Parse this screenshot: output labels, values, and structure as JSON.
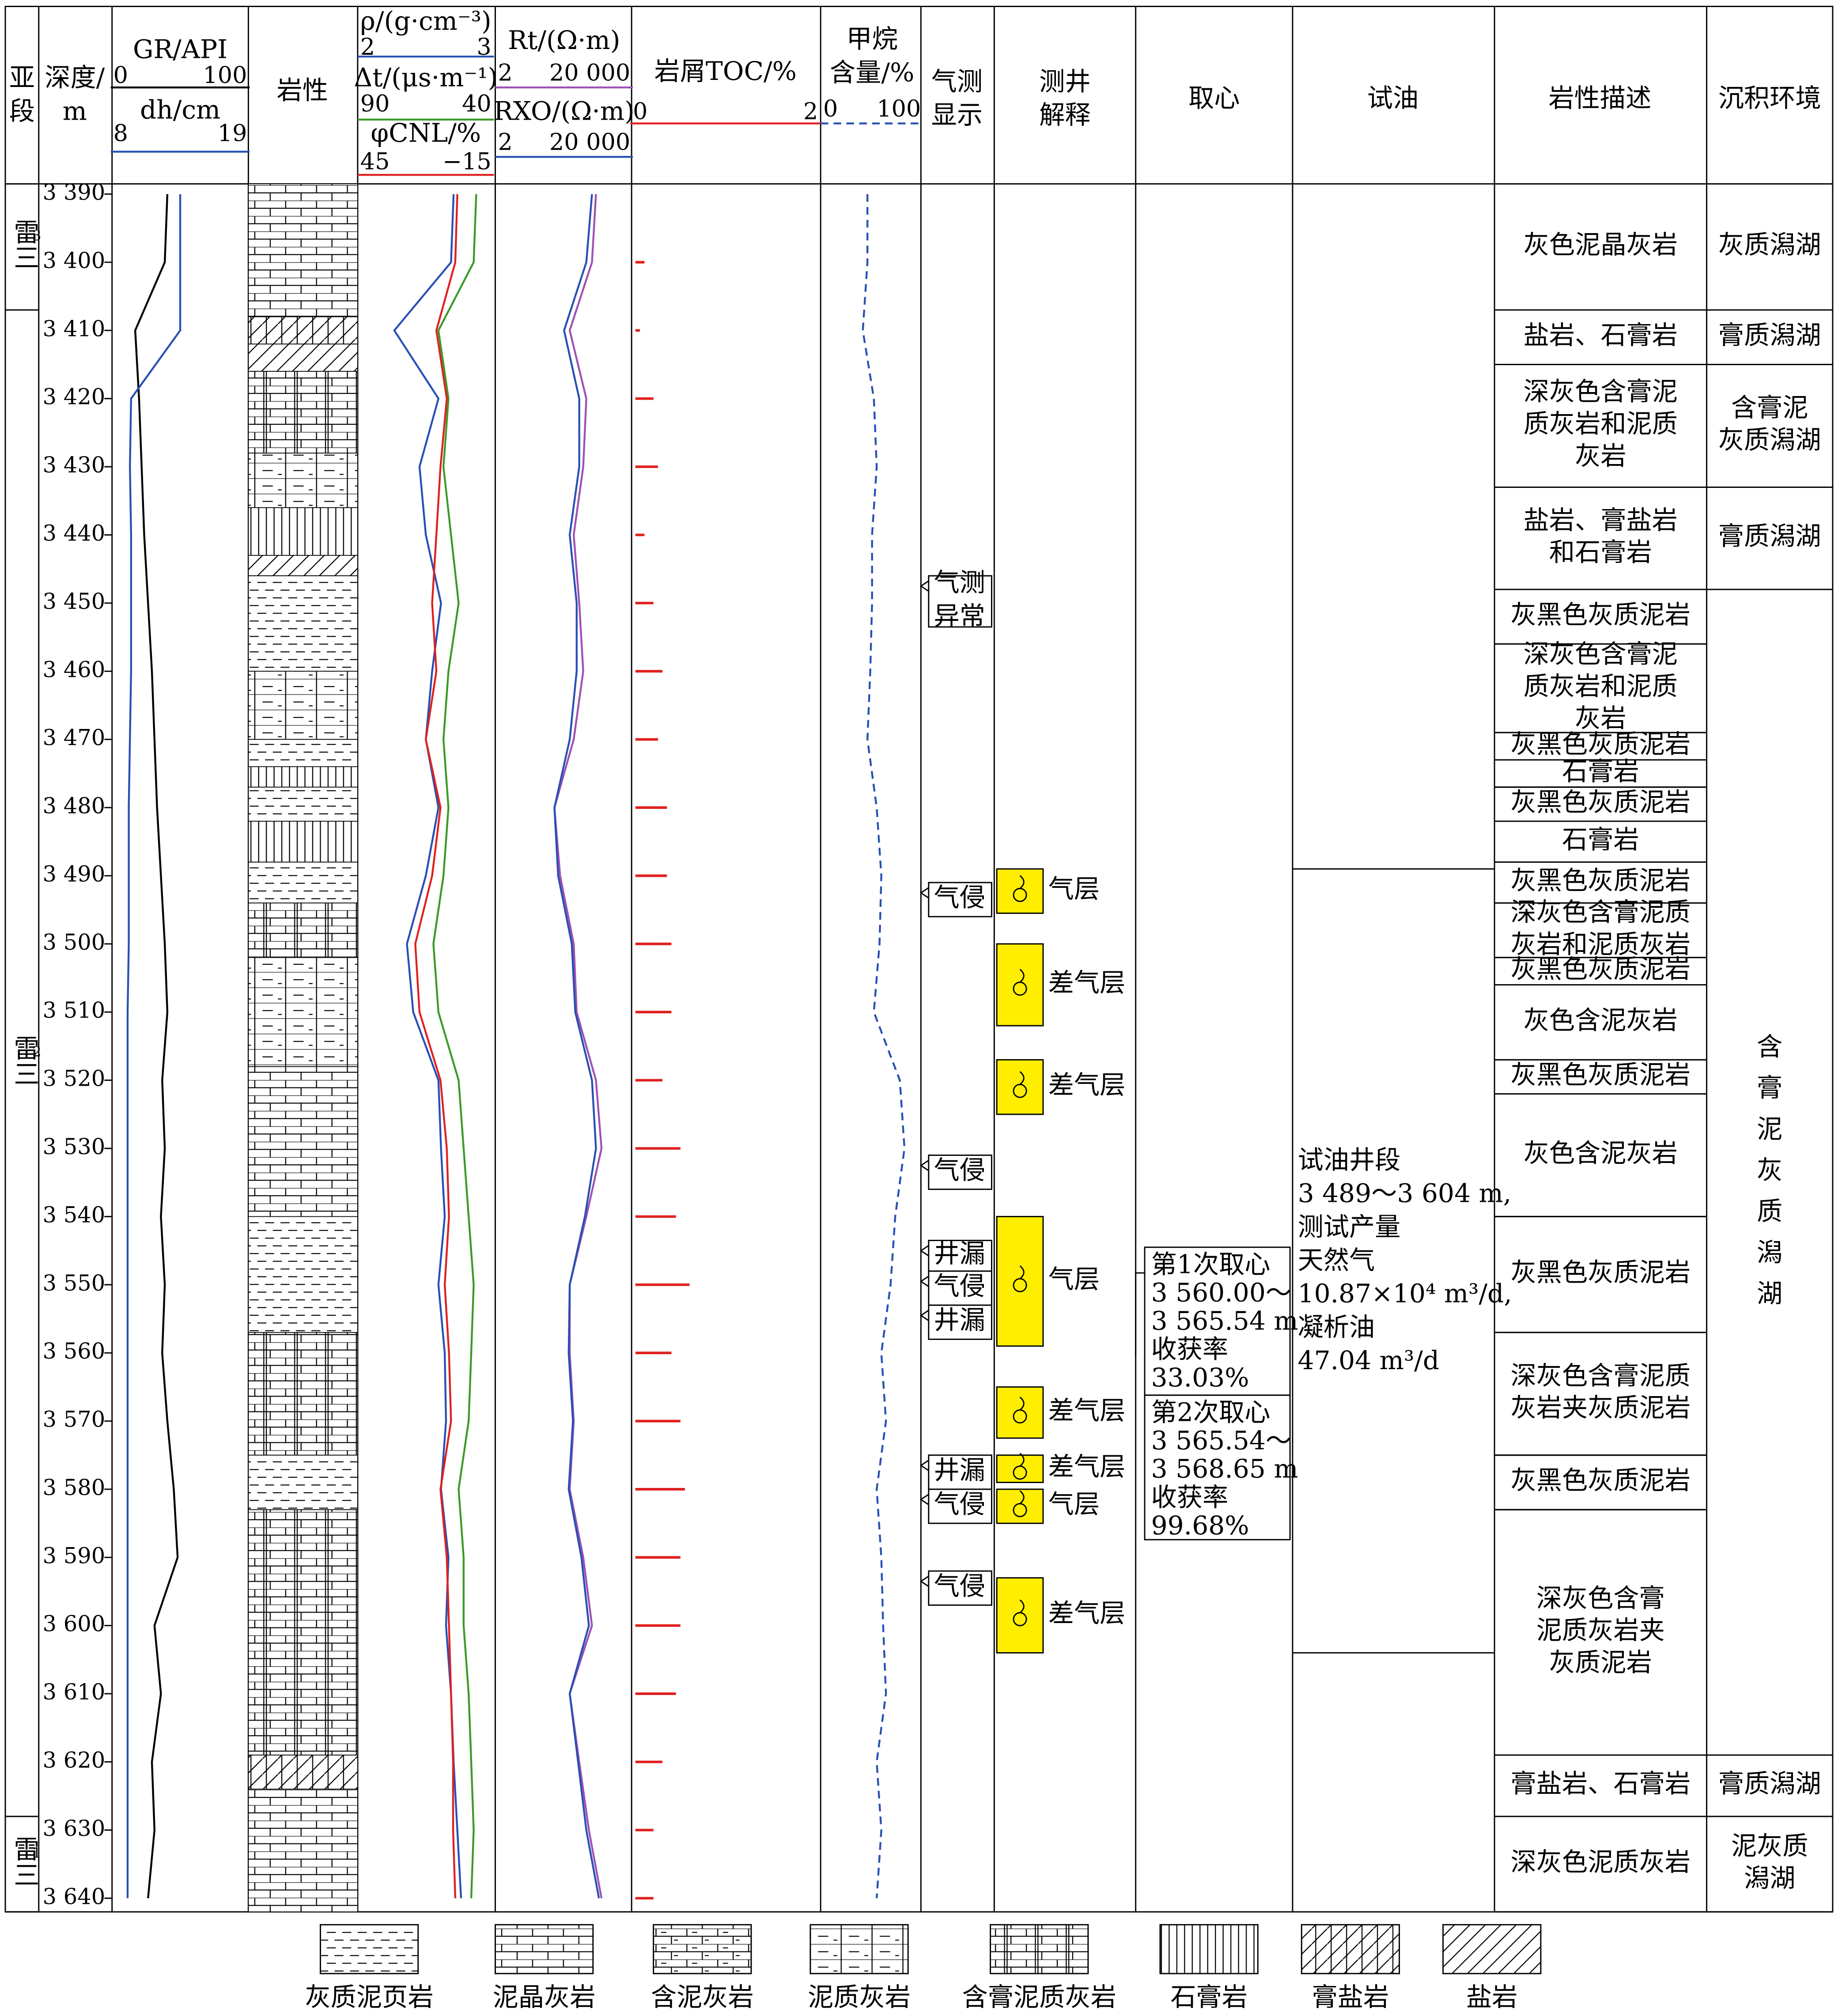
{
  "titles": {
    "substage": [
      "亚",
      "段"
    ],
    "depth": [
      "深度/",
      "m"
    ],
    "lithology": "岩性",
    "gas_show": [
      "气测",
      "显示"
    ],
    "interpretation": [
      "测井",
      "解释"
    ],
    "core": "取心",
    "test": "试油",
    "description": "岩性描述",
    "environment": "沉积环境"
  },
  "depth": {
    "ylim": [
      3388.5,
      3642
    ],
    "ticks": [
      {
        "value": 3390,
        "label": "3 390"
      },
      {
        "value": 3400,
        "label": "3 400"
      },
      {
        "value": 3410,
        "label": "3 410"
      },
      {
        "value": 3420,
        "label": "3 420"
      },
      {
        "value": 3430,
        "label": "3 430"
      },
      {
        "value": 3440,
        "label": "3 440"
      },
      {
        "value": 3450,
        "label": "3 450"
      },
      {
        "value": 3460,
        "label": "3 460"
      },
      {
        "value": 3470,
        "label": "3 470"
      },
      {
        "value": 3480,
        "label": "3 480"
      },
      {
        "value": 3490,
        "label": "3 490"
      },
      {
        "value": 3500,
        "label": "3 500"
      },
      {
        "value": 3510,
        "label": "3 510"
      },
      {
        "value": 3520,
        "label": "3 520"
      },
      {
        "value": 3530,
        "label": "3 530"
      },
      {
        "value": 3540,
        "label": "3 540"
      },
      {
        "value": 3550,
        "label": "3 550"
      },
      {
        "value": 3560,
        "label": "3 560"
      },
      {
        "value": 3570,
        "label": "3 570"
      },
      {
        "value": 3580,
        "label": "3 580"
      },
      {
        "value": 3590,
        "label": "3 590"
      },
      {
        "value": 3600,
        "label": "3 600"
      },
      {
        "value": 3610,
        "label": "3 610"
      },
      {
        "value": 3620,
        "label": "3 620"
      },
      {
        "value": 3630,
        "label": "3 630"
      },
      {
        "value": 3640,
        "label": "3 640"
      }
    ]
  },
  "substages": [
    {
      "name": "雷三",
      "sup": "3",
      "top": 3388.5,
      "base": 3407
    },
    {
      "name": "雷三",
      "sup": "2",
      "top": 3407,
      "base": 3628
    },
    {
      "name": "雷三",
      "sup": "1",
      "top": 3628,
      "base": 3642
    }
  ],
  "depths": [
    3390,
    3400,
    3410,
    3420,
    3430,
    3440,
    3450,
    3460,
    3470,
    3480,
    3490,
    3500,
    3510,
    3520,
    3530,
    3540,
    3550,
    3560,
    3570,
    3580,
    3590,
    3600,
    3610,
    3620,
    3630,
    3640
  ],
  "curves": [
    {
      "name": "GR/API",
      "type": "line",
      "color": "#000000",
      "xlim": [
        0,
        100
      ],
      "xticks": [
        0,
        100
      ],
      "values": [
        40,
        38,
        15,
        18,
        20,
        22,
        25,
        28,
        30,
        32,
        35,
        38,
        40,
        36,
        38,
        35,
        38,
        36,
        40,
        45,
        48,
        30,
        35,
        28,
        30,
        25
      ]
    },
    {
      "name": "dh/cm",
      "type": "line",
      "color": "#2850b4",
      "xlim": [
        8,
        19
      ],
      "xticks": [
        8,
        19
      ],
      "values": [
        13.5,
        13.5,
        13.5,
        9.3,
        9.2,
        9.3,
        9.3,
        9.3,
        9.2,
        9.1,
        9.1,
        9.1,
        9.0,
        9.0,
        9.0,
        9.0,
        9.0,
        9.0,
        9.0,
        9.0,
        9.0,
        9.0,
        9.0,
        9.0,
        9.0,
        9.0
      ]
    },
    {
      "name": "ρ/(g·cm⁻³)",
      "type": "line",
      "color": "#2850b4",
      "xlim": [
        2,
        3
      ],
      "xticks": [
        2,
        3
      ],
      "values": [
        2.72,
        2.7,
        2.25,
        2.6,
        2.45,
        2.5,
        2.62,
        2.55,
        2.5,
        2.6,
        2.5,
        2.35,
        2.4,
        2.6,
        2.62,
        2.65,
        2.6,
        2.65,
        2.66,
        2.62,
        2.68,
        2.66,
        2.7,
        2.72,
        2.75,
        2.78
      ]
    },
    {
      "name": "Δt/(μs·m⁻¹)",
      "type": "line",
      "color": "#3c9a28",
      "xlim": [
        90,
        40
      ],
      "xticks": [
        90,
        40
      ],
      "values": [
        45,
        46,
        60,
        56,
        58,
        55,
        52,
        56,
        58,
        56,
        58,
        62,
        60,
        52,
        50,
        48,
        46,
        47,
        48,
        52,
        50,
        50,
        48,
        47,
        46,
        47
      ]
    },
    {
      "name": "φCNL/%",
      "type": "line",
      "color": "#e02020",
      "xlim": [
        45,
        -15
      ],
      "xticks": [
        45,
        {
          "value": -15,
          "label": "−15"
        }
      ],
      "values": [
        0,
        1,
        10,
        5,
        8,
        10,
        12,
        10,
        15,
        8,
        12,
        20,
        18,
        8,
        5,
        4,
        6,
        4,
        3,
        8,
        5,
        4,
        3,
        2,
        2,
        1
      ]
    },
    {
      "name": "Rt/(Ω·m)",
      "type": "line",
      "log": true,
      "color": "#a050b4",
      "xlim": [
        2,
        20000
      ],
      "xticks": [
        2,
        {
          "value": 20000,
          "label": "20 000"
        }
      ],
      "values": [
        2000,
        1500,
        300,
        1000,
        800,
        400,
        600,
        800,
        400,
        100,
        150,
        400,
        500,
        2000,
        3000,
        1000,
        300,
        300,
        400,
        300,
        800,
        1500,
        300,
        600,
        1200,
        3000
      ]
    },
    {
      "name": "RXO/(Ω·m)",
      "type": "line",
      "log": true,
      "color": "#2850b4",
      "xlim": [
        2,
        20000
      ],
      "xticks": [
        2,
        {
          "value": 20000,
          "label": "20 000"
        }
      ],
      "values": [
        1500,
        1000,
        200,
        600,
        600,
        300,
        500,
        500,
        300,
        100,
        130,
        350,
        450,
        1500,
        2000,
        900,
        300,
        280,
        380,
        280,
        700,
        1200,
        300,
        550,
        1000,
        2500
      ]
    },
    {
      "name": "岩屑TOC/%",
      "type": "bar",
      "color": "#e02020",
      "xlim": [
        0,
        2
      ],
      "xticks": [
        0,
        2
      ],
      "values": [
        null,
        0.1,
        0.05,
        0.2,
        0.25,
        0.1,
        0.2,
        0.3,
        0.25,
        0.35,
        0.35,
        0.4,
        0.4,
        0.3,
        0.5,
        0.45,
        0.6,
        0.4,
        0.5,
        0.55,
        0.5,
        0.5,
        0.45,
        0.3,
        0.2,
        0.2
      ]
    },
    {
      "name": [
        "甲烷",
        "含量/%"
      ],
      "type": "line",
      "dash": true,
      "color": "#2850b4",
      "xlim": [
        0,
        100
      ],
      "xticks": [
        0,
        100
      ],
      "values": [
        45,
        45,
        40,
        52,
        55,
        50,
        50,
        48,
        45,
        55,
        60,
        58,
        52,
        80,
        85,
        75,
        70,
        60,
        65,
        55,
        60,
        62,
        65,
        55,
        60,
        55
      ]
    }
  ],
  "lithology": [
    {
      "lith": "泥晶灰岩",
      "top": 3388.5,
      "base": 3408
    },
    {
      "lith": "膏盐岩",
      "top": 3408,
      "base": 3412
    },
    {
      "lith": "盐岩",
      "top": 3412,
      "base": 3416
    },
    {
      "lith": "含膏泥质灰岩",
      "top": 3416,
      "base": 3428
    },
    {
      "lith": "泥质灰岩",
      "top": 3428,
      "base": 3436
    },
    {
      "lith": "石膏岩",
      "top": 3436,
      "base": 3443
    },
    {
      "lith": "盐岩",
      "top": 3443,
      "base": 3446
    },
    {
      "lith": "灰质泥页岩",
      "top": 3446,
      "base": 3460
    },
    {
      "lith": "泥质灰岩",
      "top": 3460,
      "base": 3470
    },
    {
      "lith": "灰质泥页岩",
      "top": 3470,
      "base": 3474
    },
    {
      "lith": "石膏岩",
      "top": 3474,
      "base": 3477
    },
    {
      "lith": "灰质泥页岩",
      "top": 3477,
      "base": 3482
    },
    {
      "lith": "石膏岩",
      "top": 3482,
      "base": 3488
    },
    {
      "lith": "灰质泥页岩",
      "top": 3488,
      "base": 3494
    },
    {
      "lith": "含膏泥质灰岩",
      "top": 3494,
      "base": 3502
    },
    {
      "lith": "泥质灰岩",
      "top": 3502,
      "base": 3518
    },
    {
      "lith": "泥晶灰岩",
      "top": 3518,
      "base": 3540
    },
    {
      "lith": "灰质泥页岩",
      "top": 3540,
      "base": 3557
    },
    {
      "lith": "含膏泥质灰岩",
      "top": 3557,
      "base": 3575
    },
    {
      "lith": "灰质泥页岩",
      "top": 3575,
      "base": 3583
    },
    {
      "lith": "含膏泥质灰岩",
      "top": 3583,
      "base": 3619
    },
    {
      "lith": "膏盐岩",
      "top": 3619,
      "base": 3624
    },
    {
      "lith": "泥晶灰岩",
      "top": 3624,
      "base": 3642
    }
  ],
  "gas_shows": [
    {
      "lines": [
        "气测",
        "异常"
      ],
      "top": 3446,
      "base": 3453.5
    },
    {
      "lines": [
        "气侵"
      ],
      "top": 3491,
      "base": 3496
    },
    {
      "lines": [
        "气侵"
      ],
      "top": 3531,
      "base": 3536
    },
    {
      "lines": [
        "井漏"
      ],
      "top": 3543.5,
      "base": 3548
    },
    {
      "lines": [
        "气侵"
      ],
      "top": 3548,
      "base": 3553
    },
    {
      "lines": [
        "井漏"
      ],
      "top": 3553,
      "base": 3558
    },
    {
      "lines": [
        "井漏"
      ],
      "top": 3575,
      "base": 3580
    },
    {
      "lines": [
        "气侵"
      ],
      "top": 3580,
      "base": 3585
    },
    {
      "lines": [
        "气侵"
      ],
      "top": 3592,
      "base": 3597
    }
  ],
  "interpretation": [
    {
      "label": "气层",
      "top": 3489,
      "base": 3495.5
    },
    {
      "label": "差气层",
      "top": 3500,
      "base": 3512
    },
    {
      "label": "差气层",
      "top": 3517,
      "base": 3525
    },
    {
      "label": "气层",
      "top": 3540,
      "base": 3559
    },
    {
      "label": "差气层",
      "top": 3565,
      "base": 3572.5
    },
    {
      "label": "差气层",
      "top": 3575,
      "base": 3579
    },
    {
      "label": "气层",
      "top": 3580,
      "base": 3585
    },
    {
      "label": "差气层",
      "top": 3593,
      "base": 3604
    }
  ],
  "cores": [
    {
      "lines": [
        "第1次取心",
        "3 560.00～",
        "3 565.54 m",
        "收获率",
        "33.03%"
      ],
      "top": 3544.5,
      "base": 3566.2
    },
    {
      "lines": [
        "第2次取心",
        "3 565.54～",
        "3 568.65 m",
        "收获率",
        "99.68%"
      ],
      "top": 3566.2,
      "base": 3587.4
    }
  ],
  "test": {
    "lines": [
      "试油井段",
      "3 489～3 604 m,",
      "测试产量",
      "天然气",
      "10.87×10⁴ m³/d,",
      "凝析油",
      "47.04 m³/d"
    ],
    "top": 3489,
    "base": 3604
  },
  "descriptions": [
    {
      "lines": [
        "灰色泥晶灰岩"
      ],
      "top": 3388.5,
      "base": 3407
    },
    {
      "lines": [
        "盐岩、石膏岩"
      ],
      "top": 3407,
      "base": 3415
    },
    {
      "lines": [
        "深灰色含膏泥",
        "质灰岩和泥质",
        "灰岩"
      ],
      "top": 3415,
      "base": 3433
    },
    {
      "lines": [
        "盐岩、膏盐岩",
        "和石膏岩"
      ],
      "top": 3433,
      "base": 3448
    },
    {
      "lines": [
        "灰黑色灰质泥岩"
      ],
      "top": 3448,
      "base": 3456
    },
    {
      "lines": [
        "深灰色含膏泥",
        "质灰岩和泥质",
        "灰岩"
      ],
      "top": 3456,
      "base": 3469
    },
    {
      "lines": [
        "灰黑色灰质泥岩"
      ],
      "top": 3469,
      "base": 3473
    },
    {
      "lines": [
        "石膏岩"
      ],
      "top": 3473,
      "base": 3477
    },
    {
      "lines": [
        "灰黑色灰质泥岩"
      ],
      "top": 3477,
      "base": 3482
    },
    {
      "lines": [
        "石膏岩"
      ],
      "top": 3482,
      "base": 3488
    },
    {
      "lines": [
        "灰黑色灰质泥岩"
      ],
      "top": 3488,
      "base": 3494
    },
    {
      "lines": [
        "深灰色含膏泥质",
        "灰岩和泥质灰岩"
      ],
      "top": 3494,
      "base": 3502
    },
    {
      "lines": [
        "灰黑色灰质泥岩"
      ],
      "top": 3502,
      "base": 3506
    },
    {
      "lines": [
        "灰色含泥灰岩"
      ],
      "top": 3506,
      "base": 3517
    },
    {
      "lines": [
        "灰黑色灰质泥岩"
      ],
      "top": 3517,
      "base": 3522
    },
    {
      "lines": [
        "灰色含泥灰岩"
      ],
      "top": 3522,
      "base": 3540
    },
    {
      "lines": [
        "灰黑色灰质泥岩"
      ],
      "top": 3540,
      "base": 3557
    },
    {
      "lines": [
        "深灰色含膏泥质",
        "灰岩夹灰质泥岩"
      ],
      "top": 3557,
      "base": 3575
    },
    {
      "lines": [
        "灰黑色灰质泥岩"
      ],
      "top": 3575,
      "base": 3583
    },
    {
      "lines": [
        "深灰色含膏",
        "泥质灰岩夹",
        "灰质泥岩"
      ],
      "top": 3583,
      "base": 3619
    },
    {
      "lines": [
        "膏盐岩、石膏岩"
      ],
      "top": 3619,
      "base": 3628
    },
    {
      "lines": [
        "深灰色泥质灰岩"
      ],
      "top": 3628,
      "base": 3642
    }
  ],
  "environments": [
    {
      "lines": [
        "灰质潟湖"
      ],
      "top": 3388.5,
      "base": 3407
    },
    {
      "lines": [
        "膏质潟湖"
      ],
      "top": 3407,
      "base": 3415
    },
    {
      "lines": [
        "含膏泥",
        "灰质潟湖"
      ],
      "top": 3415,
      "base": 3433
    },
    {
      "lines": [
        "膏质潟湖"
      ],
      "top": 3433,
      "base": 3448
    },
    {
      "lines": [
        "含",
        "膏",
        "泥",
        "灰",
        "质",
        "潟",
        "湖"
      ],
      "top": 3448,
      "base": 3619
    },
    {
      "lines": [
        "膏质潟湖"
      ],
      "top": 3619,
      "base": 3628
    },
    {
      "lines": [
        "泥灰质",
        "潟湖"
      ],
      "top": 3628,
      "base": 3642
    }
  ],
  "legend": [
    "灰质泥页岩",
    "泥晶灰岩",
    "含泥灰岩",
    "泥质灰岩",
    "含膏泥质灰岩",
    "石膏岩",
    "膏盐岩",
    "盐岩"
  ]
}
